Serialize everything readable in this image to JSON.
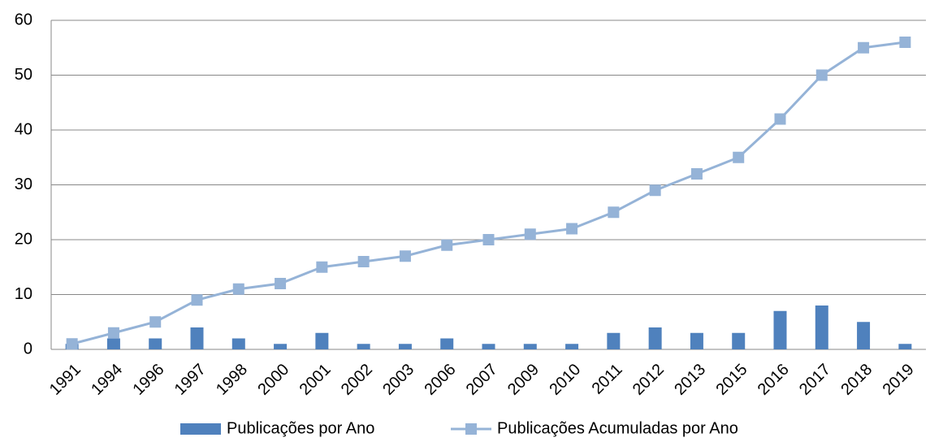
{
  "chart_data": {
    "type": "combo",
    "categories": [
      "1991",
      "1994",
      "1996",
      "1997",
      "1998",
      "2000",
      "2001",
      "2002",
      "2003",
      "2006",
      "2007",
      "2009",
      "2010",
      "2011",
      "2012",
      "2013",
      "2015",
      "2016",
      "2017",
      "2018",
      "2019"
    ],
    "series": [
      {
        "name": "Publicações por Ano",
        "type": "bar",
        "color": "#4f81bd",
        "values": [
          1,
          2,
          2,
          4,
          2,
          1,
          3,
          1,
          1,
          2,
          1,
          1,
          1,
          3,
          4,
          3,
          3,
          7,
          8,
          5,
          1
        ]
      },
      {
        "name": "Publicações Acumuladas por Ano",
        "type": "line",
        "color": "#95b3d7",
        "values": [
          1,
          3,
          5,
          9,
          11,
          12,
          15,
          16,
          17,
          19,
          20,
          21,
          22,
          25,
          29,
          32,
          35,
          42,
          50,
          55,
          56
        ]
      }
    ],
    "ylim": [
      0,
      60
    ],
    "yticks": [
      0,
      10,
      20,
      30,
      40,
      50,
      60
    ],
    "grid": true,
    "legend": "bottom"
  }
}
